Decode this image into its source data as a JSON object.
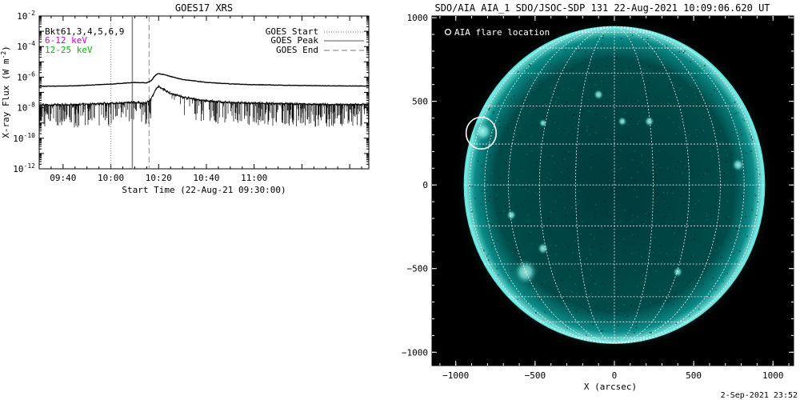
{
  "chart_data": [
    {
      "type": "line",
      "title": "GOES17 XRS",
      "xlabel": "Start Time (22-Aug-21 09:30:00)",
      "ylabel": "X-ray Flux (W m",
      "ylabel_exp": "-2",
      "ylabel_close": ")",
      "y_scale": "log",
      "ylim": [
        1e-12,
        0.01
      ],
      "xlim": [
        "09:30",
        "11:48"
      ],
      "y_ticks": [
        {
          "base": "10",
          "exp": "-2",
          "v": -2
        },
        {
          "base": "10",
          "exp": "-4",
          "v": -4
        },
        {
          "base": "10",
          "exp": "-6",
          "v": -6
        },
        {
          "base": "10",
          "exp": "-8",
          "v": -8
        },
        {
          "base": "10",
          "exp": "-10",
          "v": -10
        },
        {
          "base": "10",
          "exp": "-12",
          "v": -12
        }
      ],
      "x_ticks": [
        {
          "label": "09:40",
          "t": "09:40"
        },
        {
          "label": "10:00",
          "t": "10:00"
        },
        {
          "label": "10:20",
          "t": "10:20"
        },
        {
          "label": "10:40",
          "t": "10:40"
        },
        {
          "label": "11:00",
          "t": "11:00"
        }
      ],
      "channel_labels": [
        {
          "text": "Bkt61,3,4,5,6,9",
          "color": "#000000"
        },
        {
          "text": "6-12 keV",
          "color": "#d000d0"
        },
        {
          "text": "12-25 keV",
          "color": "#00c000"
        }
      ],
      "legend": {
        "placement": "top-right",
        "entries": [
          {
            "label": "GOES Start",
            "style": "dotted"
          },
          {
            "label": "GOES Peak",
            "style": "solid"
          },
          {
            "label": "GOES End",
            "style": "dashed"
          }
        ]
      },
      "event_lines": {
        "start": "10:00",
        "peak": "10:09",
        "end": "10:16"
      },
      "series": [
        {
          "channel": "long",
          "x": [
            "09:30",
            "09:45",
            "10:00",
            "10:10",
            "10:15",
            "10:17",
            "10:18",
            "10:19",
            "10:20",
            "10:22",
            "10:25",
            "10:30",
            "10:40",
            "10:50",
            "11:00",
            "11:15",
            "11:30",
            "11:48"
          ],
          "y": [
            2.5e-07,
            2.7e-07,
            3.5e-07,
            4.5e-07,
            4.2e-07,
            6e-07,
            1e-06,
            1.5e-06,
            1.7e-06,
            1.5e-06,
            1.1e-06,
            7e-07,
            4.5e-07,
            3.6e-07,
            3.2e-07,
            2.9e-07,
            2.7e-07,
            2.6e-07
          ]
        },
        {
          "channel": "short",
          "x": [
            "09:30",
            "09:45",
            "10:00",
            "10:10",
            "10:15",
            "10:17",
            "10:18",
            "10:19",
            "10:20",
            "10:22",
            "10:25",
            "10:30",
            "10:40",
            "10:50",
            "11:00",
            "11:15",
            "11:30",
            "11:48"
          ],
          "y": [
            1.5e-08,
            1.6e-08,
            1.9e-08,
            2.2e-08,
            2e-08,
            4e-08,
            9e-08,
            1.8e-07,
            2.3e-07,
            1.6e-07,
            9e-08,
            5e-08,
            2.8e-08,
            2.2e-08,
            2e-08,
            1.8e-08,
            1.6e-08,
            1.6e-08
          ]
        }
      ]
    },
    {
      "type": "scatter",
      "title": "SDO/AIA AIA_1 SDO/JSOC-SDP 131 22-Aug-2021 10:09:06.620 UT",
      "xlabel": "X (arcsec)",
      "ylabel": "",
      "xlim": [
        -1150,
        1130
      ],
      "ylim": [
        -1080,
        1010
      ],
      "x_ticks": [
        -1000,
        -500,
        0,
        500,
        1000
      ],
      "y_ticks": [
        1000,
        500,
        0,
        -500,
        -1000
      ],
      "solar_radius": 945,
      "grid": true,
      "disk_color": "#003838",
      "limb_color": "#5fe8e0",
      "legend": {
        "placement": "top-left",
        "entries": [
          {
            "label": "AIA flare location",
            "marker": "circle"
          }
        ]
      },
      "flare": {
        "x": -840,
        "y": 310,
        "radius": 95
      }
    }
  ],
  "footer": {
    "timestamp": "2-Sep-2021 23:52"
  }
}
